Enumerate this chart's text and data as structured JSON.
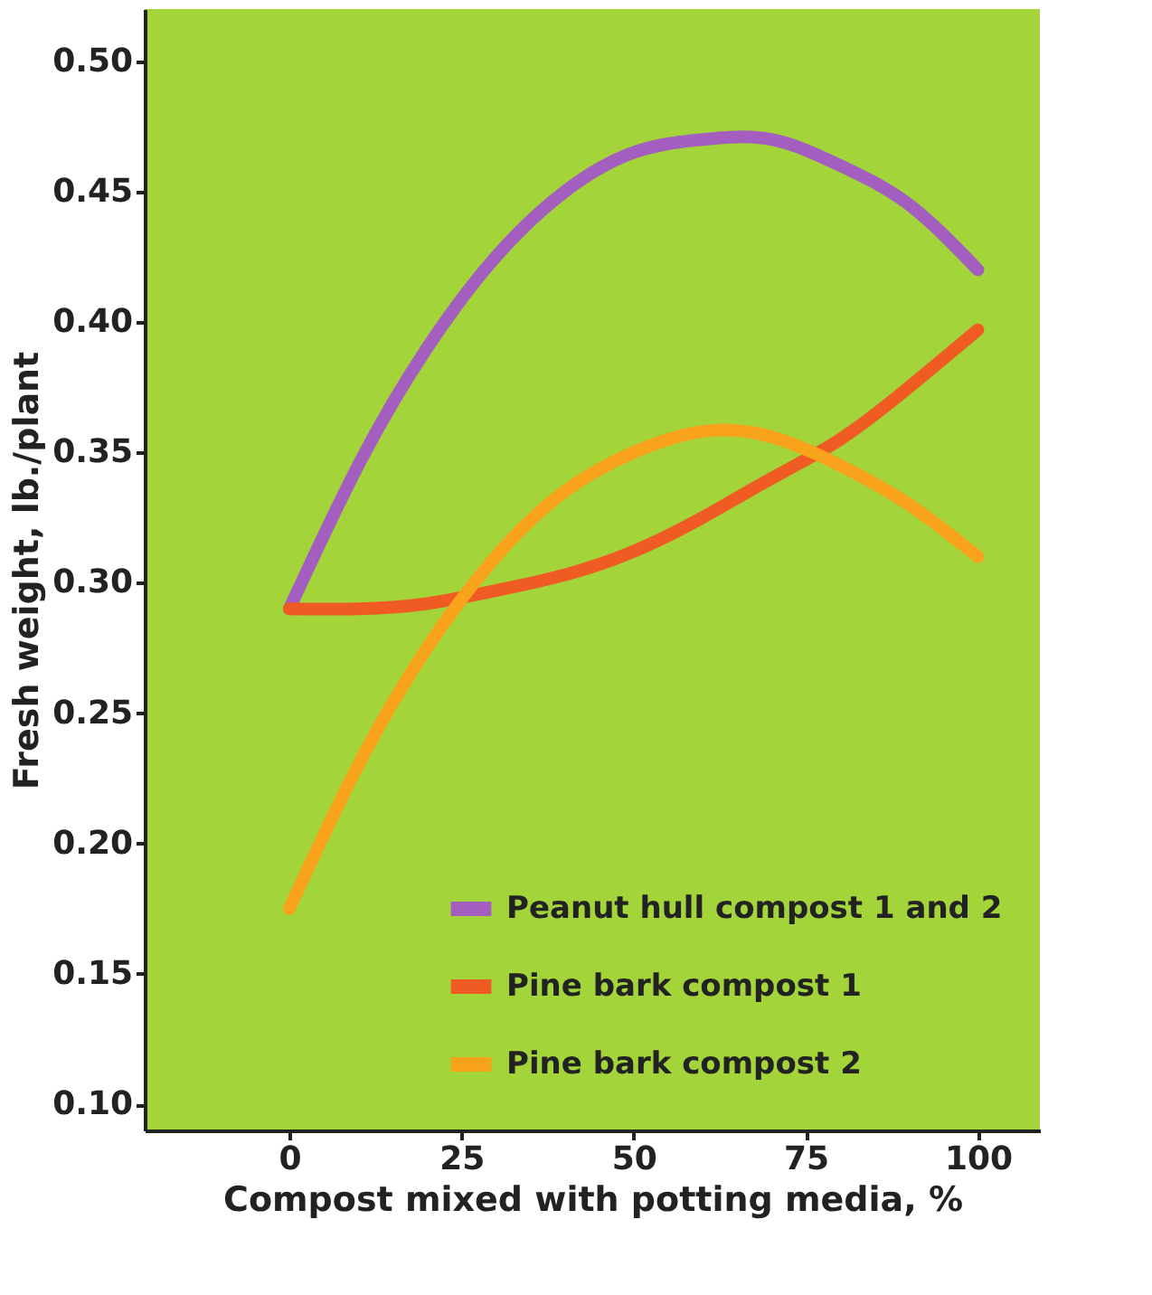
{
  "chart_data": {
    "type": "line",
    "xlabel": "Compost mixed with potting media, %",
    "ylabel": "Fresh weight, lb./plant",
    "x": [
      0,
      10,
      20,
      30,
      40,
      50,
      60,
      70,
      80,
      90,
      100
    ],
    "xlim": [
      -21,
      109
    ],
    "xticks": [
      0,
      25,
      50,
      75,
      100
    ],
    "ylim": [
      0.09,
      0.52
    ],
    "yticks": [
      {
        "value": 0.1,
        "label": "0.10"
      },
      {
        "value": 0.15,
        "label": "0.15"
      },
      {
        "value": 0.2,
        "label": "0.20"
      },
      {
        "value": 0.25,
        "label": "0.25"
      },
      {
        "value": 0.3,
        "label": "0.30"
      },
      {
        "value": 0.35,
        "label": "0.35"
      },
      {
        "value": 0.4,
        "label": "0.40"
      },
      {
        "value": 0.45,
        "label": "0.45"
      },
      {
        "value": 0.5,
        "label": "0.50"
      }
    ],
    "grid": false,
    "legend": "bottom right",
    "marker": "none",
    "line_style": "solid",
    "series": [
      {
        "name": "Peanut hull compost 1 and 2",
        "color": "#a45ec0",
        "values": [
          0.29,
          0.345,
          0.39,
          0.425,
          0.45,
          0.465,
          0.47,
          0.47,
          0.46,
          0.445,
          0.42
        ]
      },
      {
        "name": "Pine bark compost 1",
        "color": "#f05a23",
        "values": [
          0.29,
          0.29,
          0.292,
          0.297,
          0.303,
          0.312,
          0.325,
          0.34,
          0.355,
          0.375,
          0.397
        ]
      },
      {
        "name": "Pine bark compost 2",
        "color": "#f9a21b",
        "values": [
          0.175,
          0.23,
          0.275,
          0.31,
          0.335,
          0.35,
          0.358,
          0.356,
          0.345,
          0.33,
          0.31
        ]
      }
    ]
  }
}
